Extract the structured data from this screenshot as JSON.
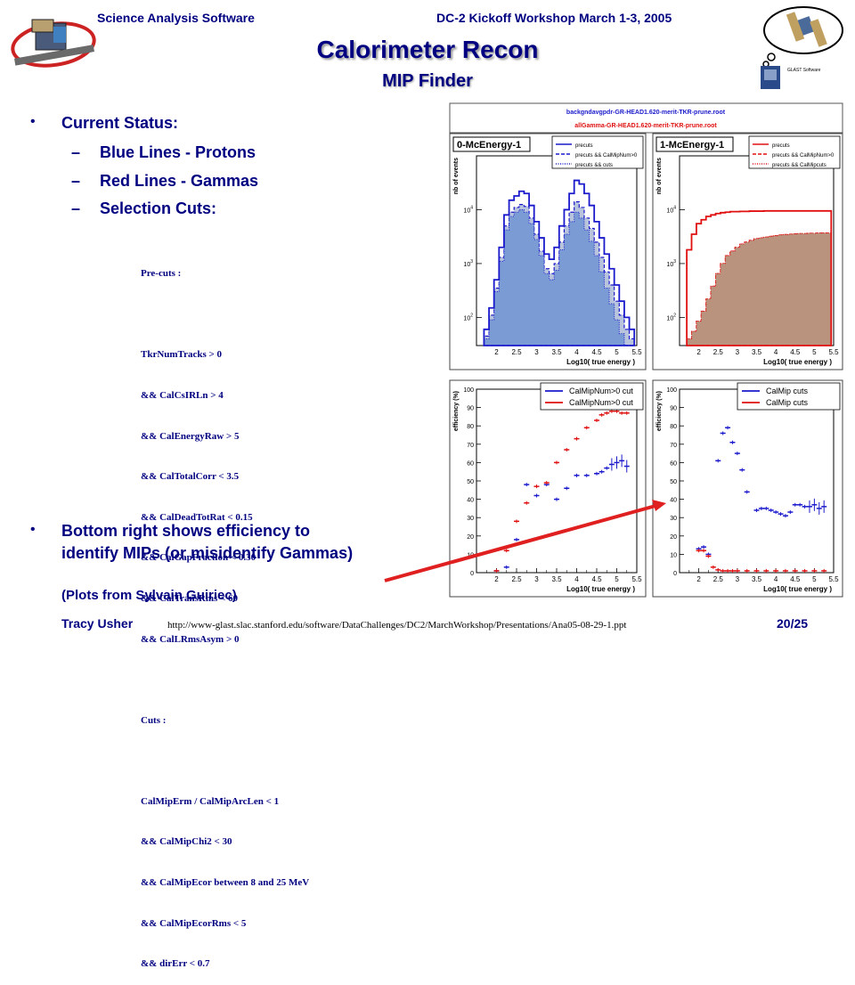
{
  "header": {
    "left": "Science Analysis Software",
    "right": "DC-2 Kickoff Workshop March 1-3, 2005"
  },
  "title": "Calorimeter Recon",
  "subtitle": "MIP Finder",
  "bullets": {
    "status": "Current Status:",
    "items": [
      "Blue Lines - Protons",
      "Red Lines - Gammas",
      "Selection Cuts:"
    ],
    "bottom_line1": "Bottom right shows efficiency to",
    "bottom_line2": "identify MIPs (or misidentify Gammas)",
    "credit": "(Plots from Sylvain Guiriec)"
  },
  "cuts_text": [
    "Pre-cuts :",
    "",
    "TkrNumTracks > 0",
    "&& CalCsIRLn > 4",
    "&& CalEnergyRaw > 5",
    "&& CalTotalCorr < 3.5",
    "&& CalDeadTotRat < 0.15",
    "&& CalGapFraction < 0.30",
    "&& CalTransRms < 60",
    "&& CalLRmsAsym > 0",
    "",
    "Cuts :",
    "",
    "CalMipErm / CalMipArcLen < 1",
    "&& CalMipChi2 < 30",
    "&& CalMipEcor between 8 and 25 MeV",
    "&& CalMipEcorRms < 5",
    "&& dirErr < 0.7"
  ],
  "footer": {
    "author": "Tracy Usher",
    "url": "http://www-glast.slac.stanford.edu/software/DataChallenges/DC2/MarchWorkshop/Presentations/Ana05-08-29-1.ppt",
    "page": "20/25"
  },
  "logo_text": "GLAST Software",
  "colors": {
    "navy": "#000080",
    "proton": "#1a1acc",
    "gamma": "#e01010",
    "proton_fill": "#7b9bd4",
    "proton_fill2": "#b8c4dc",
    "gamma_fill": "#b9937e",
    "arrow": "#e02020"
  },
  "chart_data": [
    {
      "type": "table",
      "rows": [
        "backgndavgpdr-GR-HEAD1.620-merit-TKR-prune.root",
        "allGamma-GR-HEAD1.620-merit-TKR-prune.root"
      ]
    },
    {
      "type": "area",
      "title": "0-McEnergy-1",
      "xlabel": "Log10( true energy )",
      "ylabel": "nb of events",
      "log_y": true,
      "xlim": [
        1.5,
        5.5
      ],
      "ylim": [
        30,
        100000
      ],
      "xticks": [
        "2",
        "2.5",
        "3",
        "3.5",
        "4",
        "4.5",
        "5",
        "5.5"
      ],
      "yticks": [
        "10^2",
        "10^3",
        "10^4"
      ],
      "x": [
        1.75,
        1.875,
        2.0,
        2.125,
        2.25,
        2.375,
        2.5,
        2.625,
        2.75,
        2.875,
        3.0,
        3.125,
        3.25,
        3.375,
        3.5,
        3.625,
        3.75,
        3.875,
        4.0,
        4.125,
        4.25,
        4.375,
        4.5,
        4.625,
        4.75,
        4.875,
        5.0,
        5.125,
        5.25,
        5.375
      ],
      "legend": [
        "precuts",
        "precuts && CalMipNum>0",
        "precuts && cuts"
      ],
      "series": [
        {
          "name": "precuts",
          "values": [
            60,
            150,
            500,
            2000,
            8000,
            15000,
            18000,
            22000,
            20000,
            12000,
            6000,
            3000,
            1500,
            1200,
            2000,
            5000,
            10000,
            20000,
            35000,
            30000,
            20000,
            12000,
            6000,
            3000,
            1500,
            800,
            400,
            200,
            100,
            60
          ]
        },
        {
          "name": "precuts && CalMipNum>0",
          "values": [
            45,
            110,
            350,
            1300,
            5000,
            9000,
            11000,
            12500,
            11500,
            7000,
            3500,
            1700,
            800,
            650,
            1000,
            2500,
            5000,
            9000,
            14000,
            11000,
            7000,
            4500,
            2500,
            1300,
            700,
            400,
            200,
            110,
            60,
            40
          ]
        },
        {
          "name": "precuts && cuts",
          "values": [
            40,
            90,
            300,
            1100,
            4200,
            7500,
            9000,
            10000,
            9000,
            5500,
            2800,
            1400,
            650,
            500,
            750,
            1800,
            3500,
            6000,
            9000,
            7000,
            4200,
            2600,
            1400,
            700,
            350,
            180,
            90,
            50,
            30,
            20
          ]
        }
      ]
    },
    {
      "type": "area",
      "title": "1-McEnergy-1",
      "xlabel": "Log10( true energy )",
      "ylabel": "nb of events",
      "log_y": true,
      "xlim": [
        1.5,
        5.5
      ],
      "ylim": [
        30,
        100000
      ],
      "xticks": [
        "2",
        "2.5",
        "3",
        "3.5",
        "4",
        "4.5",
        "5",
        "5.5"
      ],
      "yticks": [
        "10^2",
        "10^3",
        "10^4"
      ],
      "x": [
        1.75,
        1.875,
        2.0,
        2.125,
        2.25,
        2.375,
        2.5,
        2.625,
        2.75,
        2.875,
        3.0,
        3.125,
        3.25,
        3.375,
        3.5,
        3.625,
        3.75,
        3.875,
        4.0,
        4.125,
        4.25,
        4.375,
        4.5,
        4.625,
        4.75,
        4.875,
        5.0,
        5.125,
        5.25,
        5.375
      ],
      "legend": [
        "precuts",
        "precuts && CalMipNum>0",
        "precuts && CalMipcuts"
      ],
      "series": [
        {
          "name": "precuts",
          "values": [
            1800,
            3500,
            5500,
            6500,
            7500,
            8000,
            8500,
            8800,
            9000,
            9200,
            9200,
            9300,
            9300,
            9400,
            9400,
            9400,
            9500,
            9500,
            9500,
            9500,
            9500,
            9500,
            9500,
            9500,
            9500,
            9500,
            9500,
            9500,
            9500,
            9500
          ]
        },
        {
          "name": "precuts && CalMipNum>0",
          "values": [
            40,
            55,
            85,
            130,
            220,
            380,
            650,
            1000,
            1400,
            1700,
            2000,
            2300,
            2500,
            2700,
            2900,
            3000,
            3100,
            3200,
            3300,
            3400,
            3450,
            3500,
            3550,
            3600,
            3600,
            3650,
            3650,
            3700,
            3700,
            3700
          ]
        },
        {
          "name": "precuts && CalMipcuts",
          "values": [
            40,
            55,
            85,
            130,
            220,
            380,
            650,
            1000,
            1400,
            1700,
            2000,
            2300,
            2500,
            2700,
            2900,
            3000,
            3100,
            3200,
            3300,
            3400,
            3450,
            3500,
            3550,
            3600,
            3600,
            3650,
            3650,
            3700,
            3700,
            3700
          ]
        }
      ]
    },
    {
      "type": "scatter",
      "xlabel": "Log10( true energy )",
      "ylabel": "efficiency (%)",
      "xlim": [
        1.5,
        5.5
      ],
      "ylim": [
        0,
        100
      ],
      "xticks": [
        "2",
        "2.5",
        "3",
        "3.5",
        "4",
        "4.5",
        "5",
        "5.5"
      ],
      "yticks": [
        "0",
        "10",
        "20",
        "30",
        "40",
        "50",
        "60",
        "70",
        "80",
        "90",
        "100"
      ],
      "legend": [
        "CalMipNum>0 cut",
        "CalMipNum>0 cut"
      ],
      "series": [
        {
          "name": "CalMipNum>0 cut",
          "x": [
            2.0,
            2.25,
            2.5,
            2.75,
            3.0,
            3.25,
            3.5,
            3.75,
            4.0,
            4.25,
            4.5,
            4.625,
            4.75,
            4.875,
            5.0,
            5.125,
            5.25
          ],
          "values": [
            1,
            3,
            18,
            48,
            42,
            48,
            40,
            46,
            53,
            53,
            54,
            55,
            57,
            59,
            60,
            61,
            58
          ]
        },
        {
          "name": "CalMipNum>0 cut",
          "x": [
            2.0,
            2.25,
            2.5,
            2.75,
            3.0,
            3.25,
            3.5,
            3.75,
            4.0,
            4.25,
            4.5,
            4.625,
            4.75,
            4.875,
            5.0,
            5.125,
            5.25
          ],
          "values": [
            1,
            12,
            28,
            38,
            47,
            49,
            60,
            67,
            73,
            79,
            83,
            86,
            87,
            88,
            88,
            87,
            87
          ]
        }
      ]
    },
    {
      "type": "scatter",
      "xlabel": "Log10( true energy )",
      "ylabel": "efficiency (%)",
      "xlim": [
        1.5,
        5.5
      ],
      "ylim": [
        0,
        100
      ],
      "xticks": [
        "2",
        "2.5",
        "3",
        "3.5",
        "4",
        "4.5",
        "5",
        "5.5"
      ],
      "yticks": [
        "0",
        "10",
        "20",
        "30",
        "40",
        "50",
        "60",
        "70",
        "80",
        "90",
        "100"
      ],
      "legend": [
        "CalMip cuts",
        "CalMip cuts"
      ],
      "series": [
        {
          "name": "CalMip cuts",
          "x": [
            2.0,
            2.125,
            2.25,
            2.5,
            2.625,
            2.75,
            2.875,
            3.0,
            3.125,
            3.25,
            3.5,
            3.625,
            3.75,
            3.875,
            4.0,
            4.125,
            4.25,
            4.375,
            4.5,
            4.625,
            4.75,
            4.875,
            5.0,
            5.125,
            5.25
          ],
          "values": [
            13,
            14,
            10,
            61,
            76,
            79,
            71,
            65,
            56,
            44,
            34,
            35,
            35,
            34,
            33,
            32,
            31,
            33,
            37,
            37,
            36,
            36,
            37,
            35,
            36
          ]
        },
        {
          "name": "CalMip cuts",
          "x": [
            2.0,
            2.125,
            2.25,
            2.375,
            2.5,
            2.625,
            2.75,
            2.875,
            3.0,
            3.25,
            3.5,
            3.75,
            4.0,
            4.25,
            4.5,
            4.75,
            5.0,
            5.25
          ],
          "values": [
            12,
            12,
            9,
            3,
            1.5,
            1,
            1,
            1,
            1,
            1,
            1,
            1,
            1,
            1,
            1,
            1,
            1,
            1
          ]
        }
      ]
    }
  ]
}
